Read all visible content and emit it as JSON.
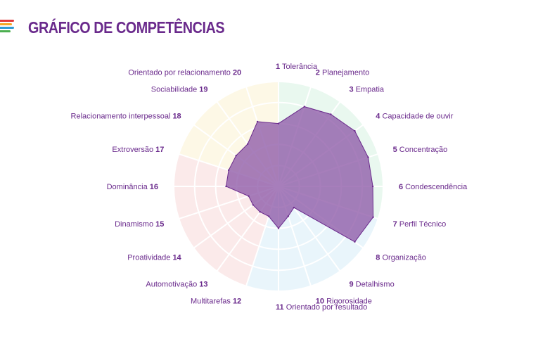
{
  "header": {
    "title": "GRÁFICO DE COMPETÊNCIAS",
    "logo_colors": [
      "#e03a3a",
      "#f5a623",
      "#2e9bd6",
      "#4caf50"
    ]
  },
  "chart_data": {
    "type": "radar",
    "title": "GRÁFICO DE COMPETÊNCIAS",
    "max": 10,
    "rings": 5,
    "categories": [
      {
        "num": "1",
        "label": "Tolerância"
      },
      {
        "num": "2",
        "label": "Planejamento"
      },
      {
        "num": "3",
        "label": "Empatia"
      },
      {
        "num": "4",
        "label": "Capacidade de ouvir"
      },
      {
        "num": "5",
        "label": "Concentração"
      },
      {
        "num": "6",
        "label": "Condescendência"
      },
      {
        "num": "7",
        "label": "Perfil Técnico"
      },
      {
        "num": "8",
        "label": "Organização"
      },
      {
        "num": "9",
        "label": "Detalhismo"
      },
      {
        "num": "10",
        "label": "Rigorosidade"
      },
      {
        "num": "11",
        "label": "Orientado por resultado"
      },
      {
        "num": "12",
        "label": "Multitarefas"
      },
      {
        "num": "13",
        "label": "Automotivação"
      },
      {
        "num": "14",
        "label": "Proatividade"
      },
      {
        "num": "15",
        "label": "Dinamismo"
      },
      {
        "num": "16",
        "label": "Dominância"
      },
      {
        "num": "17",
        "label": "Extroversão"
      },
      {
        "num": "18",
        "label": "Relacionamento interpessoal"
      },
      {
        "num": "19",
        "label": "Sociabilidade"
      },
      {
        "num": "20",
        "label": "Orientado por relacionamento"
      }
    ],
    "values": [
      6.0,
      8.0,
      8.5,
      9.0,
      9.0,
      9.0,
      9.5,
      9.0,
      2.5,
      3.0,
      4.0,
      3.0,
      3.0,
      3.0,
      3.0,
      5.0,
      5.0,
      5.0,
      5.0,
      6.5
    ],
    "quadrants": [
      {
        "from": 1,
        "to": 6,
        "color": "#e9f8ef"
      },
      {
        "from": 7,
        "to": 11,
        "color": "#e9f5fb"
      },
      {
        "from": 12,
        "to": 16,
        "color": "#fbeaea"
      },
      {
        "from": 17,
        "to": 20,
        "color": "#fdf8e6"
      }
    ],
    "series_color": "#8e5aa8",
    "series_stroke": "#6a2a8c",
    "label_color": "#6a2a8c"
  }
}
